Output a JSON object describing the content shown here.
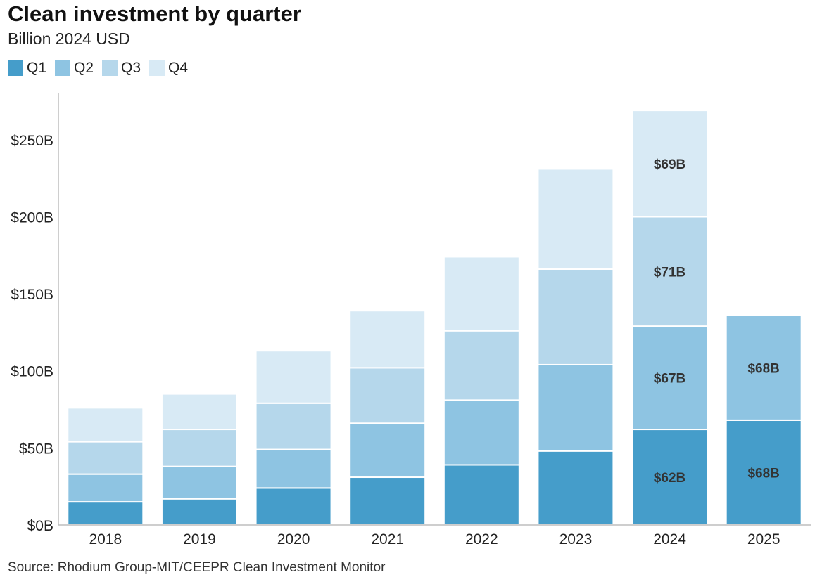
{
  "chart_data": {
    "type": "bar",
    "stacked": true,
    "title": "Clean investment by quarter",
    "subtitle": "Billion 2024 USD",
    "source": "Source: Rhodium Group-MIT/CEEPR Clean Investment Monitor",
    "categories": [
      "2018",
      "2019",
      "2020",
      "2021",
      "2022",
      "2023",
      "2024",
      "2025"
    ],
    "series": [
      {
        "name": "Q1",
        "color": "#459dca",
        "values": [
          15,
          17,
          24,
          31,
          39,
          48,
          62,
          68
        ]
      },
      {
        "name": "Q2",
        "color": "#8ec4e2",
        "values": [
          18,
          21,
          25,
          35,
          42,
          56,
          67,
          68
        ]
      },
      {
        "name": "Q3",
        "color": "#b5d7eb",
        "values": [
          21,
          24,
          30,
          36,
          45,
          62,
          71,
          null
        ]
      },
      {
        "name": "Q4",
        "color": "#d8eaf5",
        "values": [
          22,
          23,
          34,
          37,
          48,
          65,
          69,
          null
        ]
      }
    ],
    "data_labels": [
      {
        "category": "2024",
        "series": "Q1",
        "text": "$62B"
      },
      {
        "category": "2024",
        "series": "Q2",
        "text": "$67B"
      },
      {
        "category": "2024",
        "series": "Q3",
        "text": "$71B"
      },
      {
        "category": "2024",
        "series": "Q4",
        "text": "$69B"
      },
      {
        "category": "2025",
        "series": "Q1",
        "text": "$68B"
      },
      {
        "category": "2025",
        "series": "Q2",
        "text": "$68B"
      }
    ],
    "y_ticks": [
      0,
      50,
      100,
      150,
      200,
      250
    ],
    "y_tick_labels": [
      "$0B",
      "$50B",
      "$100B",
      "$150B",
      "$200B",
      "$250B"
    ],
    "ylim": [
      0,
      280
    ],
    "grid": false,
    "legend_position": "top-left"
  }
}
